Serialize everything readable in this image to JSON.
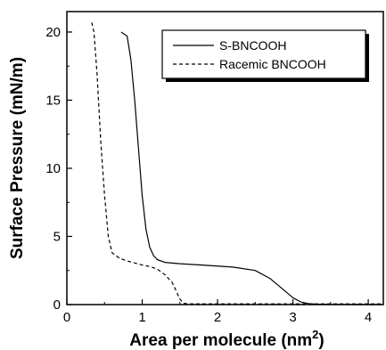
{
  "chart_data": {
    "type": "line",
    "title": "",
    "xlabel": "Area per molecule (nm",
    "xlabel_sup": "2",
    "xlabel_suffix": ")",
    "ylabel": "Surface Pressure (mN/m)",
    "xlim": [
      0,
      4.2
    ],
    "ylim": [
      0,
      21.5
    ],
    "xticks": [
      0,
      1,
      2,
      3,
      4
    ],
    "yticks": [
      0,
      5,
      10,
      15,
      20
    ],
    "grid": false,
    "legend_position": "top-right",
    "series": [
      {
        "name": "S-BNCOOH",
        "style": "solid",
        "color": "#000000",
        "x": [
          0.72,
          0.8,
          0.85,
          0.9,
          0.95,
          1.0,
          1.05,
          1.1,
          1.15,
          1.2,
          1.3,
          1.5,
          1.8,
          2.2,
          2.5,
          2.7,
          2.85,
          3.0,
          3.1,
          3.2,
          3.3,
          3.5,
          4.0,
          4.2
        ],
        "y": [
          20.0,
          19.7,
          18.0,
          15.0,
          11.5,
          8.0,
          5.5,
          4.2,
          3.6,
          3.3,
          3.1,
          3.0,
          2.9,
          2.75,
          2.5,
          1.9,
          1.2,
          0.5,
          0.2,
          0.08,
          0.03,
          0.01,
          0.0,
          0.0
        ]
      },
      {
        "name": "Racemic BNCOOH",
        "style": "dashed",
        "color": "#000000",
        "x": [
          0.33,
          0.36,
          0.4,
          0.45,
          0.5,
          0.55,
          0.6,
          0.7,
          0.8,
          0.9,
          1.0,
          1.1,
          1.2,
          1.3,
          1.4,
          1.45,
          1.5,
          1.55,
          1.6,
          2.0,
          3.0,
          4.0,
          4.2
        ],
        "y": [
          20.7,
          20.0,
          17.0,
          12.0,
          8.0,
          5.0,
          3.8,
          3.4,
          3.2,
          3.05,
          2.9,
          2.8,
          2.6,
          2.2,
          1.6,
          1.0,
          0.4,
          0.1,
          0.05,
          0.05,
          0.05,
          0.05,
          0.05
        ]
      }
    ]
  }
}
